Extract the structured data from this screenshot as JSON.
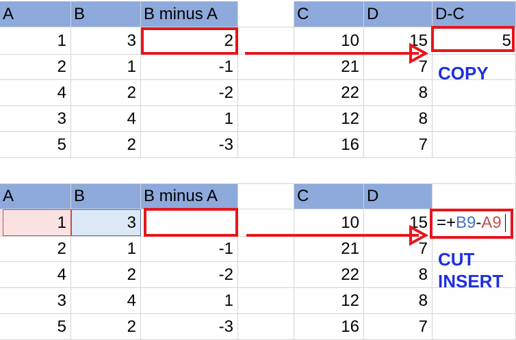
{
  "top": {
    "left_headers": [
      "A",
      "B",
      "B minus A"
    ],
    "right_headers": [
      "C",
      "D",
      "D-C"
    ],
    "rows": [
      {
        "a": "1",
        "b": "3",
        "ba": "2",
        "c": "10",
        "d": "15",
        "dc": "5"
      },
      {
        "a": "2",
        "b": "1",
        "ba": "-1",
        "c": "21",
        "d": "7",
        "dc": ""
      },
      {
        "a": "4",
        "b": "2",
        "ba": "-2",
        "c": "22",
        "d": "8",
        "dc": ""
      },
      {
        "a": "3",
        "b": "4",
        "ba": "1",
        "c": "12",
        "d": "8",
        "dc": ""
      },
      {
        "a": "5",
        "b": "2",
        "ba": "-3",
        "c": "16",
        "d": "7",
        "dc": ""
      }
    ],
    "note": "COPY"
  },
  "bottom": {
    "left_headers": [
      "A",
      "B",
      "B minus A"
    ],
    "right_headers": [
      "C",
      "D",
      ""
    ],
    "rows": [
      {
        "a": "1",
        "b": "3",
        "ba": "",
        "c": "10",
        "d": "15"
      },
      {
        "a": "2",
        "b": "1",
        "ba": "-1",
        "c": "21",
        "d": "7"
      },
      {
        "a": "4",
        "b": "2",
        "ba": "-2",
        "c": "22",
        "d": "8"
      },
      {
        "a": "3",
        "b": "4",
        "ba": "1",
        "c": "12",
        "d": "8"
      },
      {
        "a": "5",
        "b": "2",
        "ba": "-3",
        "c": "16",
        "d": "7"
      }
    ],
    "formula": {
      "prefix": "=+",
      "ref1": "B9",
      "op": "-",
      "ref2": "A9"
    },
    "note_line1": "CUT",
    "note_line2": "INSERT"
  },
  "colors": {
    "header_fill": "#8ea9db",
    "highlight_box": "#e8141b",
    "note_text": "#1f2fe0",
    "ref_b": "#4472c4",
    "ref_a": "#c0504d"
  }
}
